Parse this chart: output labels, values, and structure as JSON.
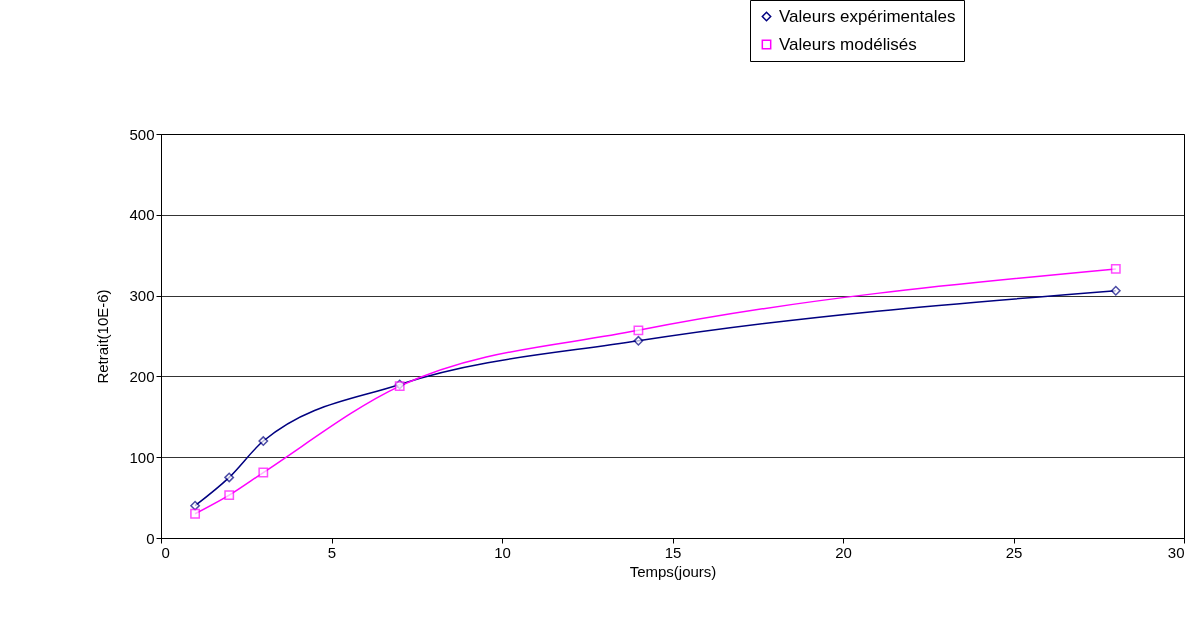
{
  "chart_data": {
    "type": "line",
    "xlabel": "Temps(jours)",
    "ylabel": "Retrait(10E-6)",
    "xlim": [
      0,
      30
    ],
    "xticks": [
      0,
      5,
      10,
      15,
      20,
      25,
      30
    ],
    "ylim": [
      0,
      500
    ],
    "yticks": [
      0,
      100,
      200,
      300,
      400,
      500
    ],
    "grid": "y",
    "legend": "top right",
    "series": [
      {
        "name": "Valeurs expérimentales",
        "color": "#000080",
        "marker": "diamond",
        "x": [
          1,
          2,
          3,
          7,
          14,
          28
        ],
        "values": [
          40,
          75,
          120,
          190,
          244,
          306
        ]
      },
      {
        "name": "Valeurs modélisés",
        "color": "#ff00ff",
        "marker": "square",
        "x": [
          1,
          2,
          3,
          7,
          14,
          28
        ],
        "values": [
          30,
          53,
          81,
          188,
          257,
          333
        ]
      }
    ]
  }
}
